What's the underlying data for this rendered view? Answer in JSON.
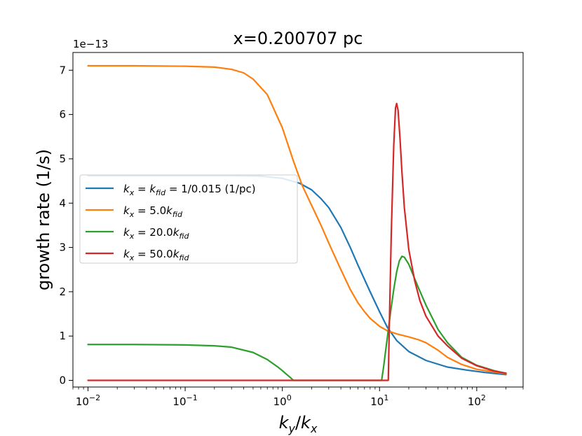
{
  "chart_data": {
    "type": "line",
    "title": "x=0.200707 pc",
    "xlabel": "k_y/k_x",
    "ylabel": "growth rate (1/s)",
    "y_offset_text": "1e−13",
    "xscale": "log",
    "xlim": [
      0.007,
      300
    ],
    "ylim": [
      -0.15,
      7.4
    ],
    "x_ticks": [
      {
        "value": 0.01,
        "base": "10",
        "exp": "−2"
      },
      {
        "value": 0.1,
        "base": "10",
        "exp": "−1"
      },
      {
        "value": 1,
        "base": "10",
        "exp": "0"
      },
      {
        "value": 10,
        "base": "10",
        "exp": "1"
      },
      {
        "value": 100,
        "base": "10",
        "exp": "2"
      }
    ],
    "y_ticks": [
      {
        "value": 0,
        "label": "0"
      },
      {
        "value": 1,
        "label": "1"
      },
      {
        "value": 2,
        "label": "2"
      },
      {
        "value": 3,
        "label": "3"
      },
      {
        "value": 4,
        "label": "4"
      },
      {
        "value": 5,
        "label": "5"
      },
      {
        "value": 6,
        "label": "6"
      },
      {
        "value": 7,
        "label": "7"
      }
    ],
    "legend": {
      "placement": "center-left",
      "entries": [
        {
          "label": "k_x = k_fid = 1/0.015 (1/pc)",
          "color": "#1f77b4"
        },
        {
          "label": "k_x = 5.0k_fid",
          "color": "#ff7f0e"
        },
        {
          "label": "k_x = 20.0k_fid",
          "color": "#2ca02c"
        },
        {
          "label": "k_x = 50.0k_fid",
          "color": "#d62728"
        }
      ]
    },
    "series": [
      {
        "name": "k_x = k_fid = 1/0.015 (1/pc)",
        "color": "#1f77b4",
        "x": [
          0.01,
          0.03,
          0.1,
          0.3,
          0.6,
          1.0,
          1.5,
          2.0,
          2.5,
          3.0,
          4.0,
          5.0,
          6.0,
          8.0,
          10.0,
          12.0,
          15.0,
          20.0,
          30.0,
          50.0,
          80.0,
          120.0,
          200.0
        ],
        "y": [
          4.62,
          4.62,
          4.62,
          4.62,
          4.61,
          4.56,
          4.45,
          4.3,
          4.1,
          3.9,
          3.45,
          3.0,
          2.6,
          2.0,
          1.55,
          1.2,
          0.9,
          0.65,
          0.45,
          0.3,
          0.23,
          0.18,
          0.13
        ]
      },
      {
        "name": "k_x = 5.0k_fid",
        "color": "#ff7f0e",
        "x": [
          0.01,
          0.03,
          0.1,
          0.2,
          0.3,
          0.4,
          0.5,
          0.7,
          1.0,
          1.3,
          1.6,
          2.0,
          2.5,
          3.0,
          4.0,
          5.0,
          6.0,
          7.0,
          8.0,
          10.0,
          12.0,
          15.0,
          20.0,
          25.0,
          30.0,
          40.0,
          50.0,
          70.0,
          100.0,
          150.0,
          200.0
        ],
        "y": [
          7.1,
          7.1,
          7.09,
          7.07,
          7.02,
          6.94,
          6.8,
          6.45,
          5.7,
          4.95,
          4.4,
          3.95,
          3.5,
          3.1,
          2.5,
          2.05,
          1.75,
          1.55,
          1.4,
          1.22,
          1.12,
          1.05,
          0.98,
          0.92,
          0.85,
          0.68,
          0.52,
          0.36,
          0.25,
          0.19,
          0.15
        ]
      },
      {
        "name": "k_x = 20.0k_fid",
        "color": "#2ca02c",
        "x": [
          0.01,
          0.03,
          0.1,
          0.2,
          0.3,
          0.5,
          0.7,
          0.9,
          1.0,
          1.1,
          1.2,
          1.3,
          2.0,
          5.0,
          10.5,
          11.0,
          12.0,
          13.0,
          14.0,
          15.0,
          16.0,
          17.0,
          18.0,
          20.0,
          25.0,
          30.0,
          40.0,
          50.0,
          70.0,
          100.0,
          150.0,
          200.0
        ],
        "y": [
          0.81,
          0.81,
          0.8,
          0.78,
          0.75,
          0.63,
          0.47,
          0.3,
          0.22,
          0.14,
          0.07,
          0.0,
          0.0,
          0.0,
          0.0,
          0.3,
          0.95,
          1.55,
          2.05,
          2.45,
          2.7,
          2.8,
          2.78,
          2.62,
          2.1,
          1.7,
          1.15,
          0.85,
          0.52,
          0.34,
          0.22,
          0.16
        ]
      },
      {
        "name": "k_x = 50.0k_fid",
        "color": "#d62728",
        "x": [
          0.01,
          0.1,
          1.0,
          5.0,
          12.3,
          12.6,
          13.2,
          14.0,
          14.6,
          15.0,
          15.5,
          16.2,
          17.0,
          18.0,
          20.0,
          23.0,
          26.0,
          30.0,
          40.0,
          50.0,
          70.0,
          100.0,
          150.0,
          200.0
        ],
        "y": [
          0.0,
          0.0,
          0.0,
          0.0,
          0.0,
          1.2,
          3.3,
          5.3,
          6.15,
          6.25,
          6.1,
          5.5,
          4.7,
          3.9,
          2.95,
          2.25,
          1.8,
          1.45,
          1.0,
          0.78,
          0.5,
          0.33,
          0.21,
          0.16
        ]
      }
    ]
  }
}
